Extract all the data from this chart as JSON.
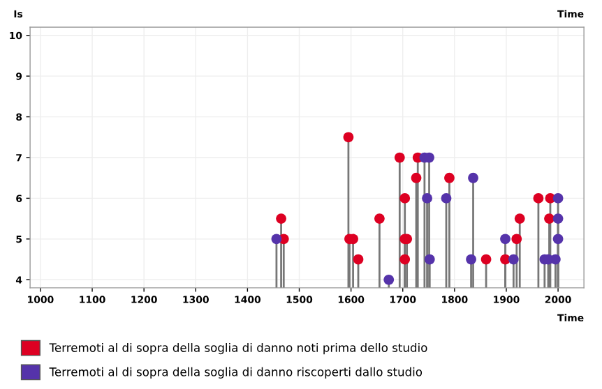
{
  "chart_data": {
    "type": "lollipop",
    "xlabel": "Time",
    "ylabel": "Is",
    "xlim": [
      980,
      2050
    ],
    "ylim": [
      3.8,
      10.2
    ],
    "xticks": [
      1000,
      1100,
      1200,
      1300,
      1400,
      1500,
      1600,
      1700,
      1800,
      1900,
      2000
    ],
    "yticks": [
      4,
      5,
      6,
      7,
      8,
      9,
      10
    ],
    "grid": true,
    "legend": "bottom",
    "marker": "circle",
    "series": [
      {
        "name": "Terremoti al di sopra della soglia di danno noti prima dello studio",
        "color": "#dd0022",
        "x": [
          1465,
          1470,
          1595,
          1597,
          1604,
          1614,
          1655,
          1694,
          1704,
          1704,
          1708,
          1704,
          1726,
          1729,
          1790,
          1861,
          1898,
          1920,
          1926,
          1962,
          1983,
          1985
        ],
        "values": [
          5.5,
          5.0,
          7.5,
          5.0,
          5.0,
          4.5,
          5.5,
          7.0,
          6.0,
          5.0,
          5.0,
          4.5,
          6.5,
          7.0,
          6.5,
          4.5,
          4.5,
          5.0,
          5.5,
          6.0,
          5.5,
          6.0
        ]
      },
      {
        "name": "Terremoti al di sopra della soglia di danno riscoperti dallo studio",
        "color": "#5533aa",
        "x": [
          1456,
          1673,
          1742,
          1751,
          1747,
          1752,
          1784,
          1836,
          1832,
          1898,
          1914,
          1974,
          1981,
          1995,
          2000,
          2000,
          2000
        ],
        "values": [
          5.0,
          4.0,
          7.0,
          7.0,
          6.0,
          4.5,
          6.0,
          6.5,
          4.5,
          5.0,
          4.5,
          4.5,
          4.5,
          4.5,
          6.0,
          5.5,
          5.0
        ]
      }
    ]
  }
}
